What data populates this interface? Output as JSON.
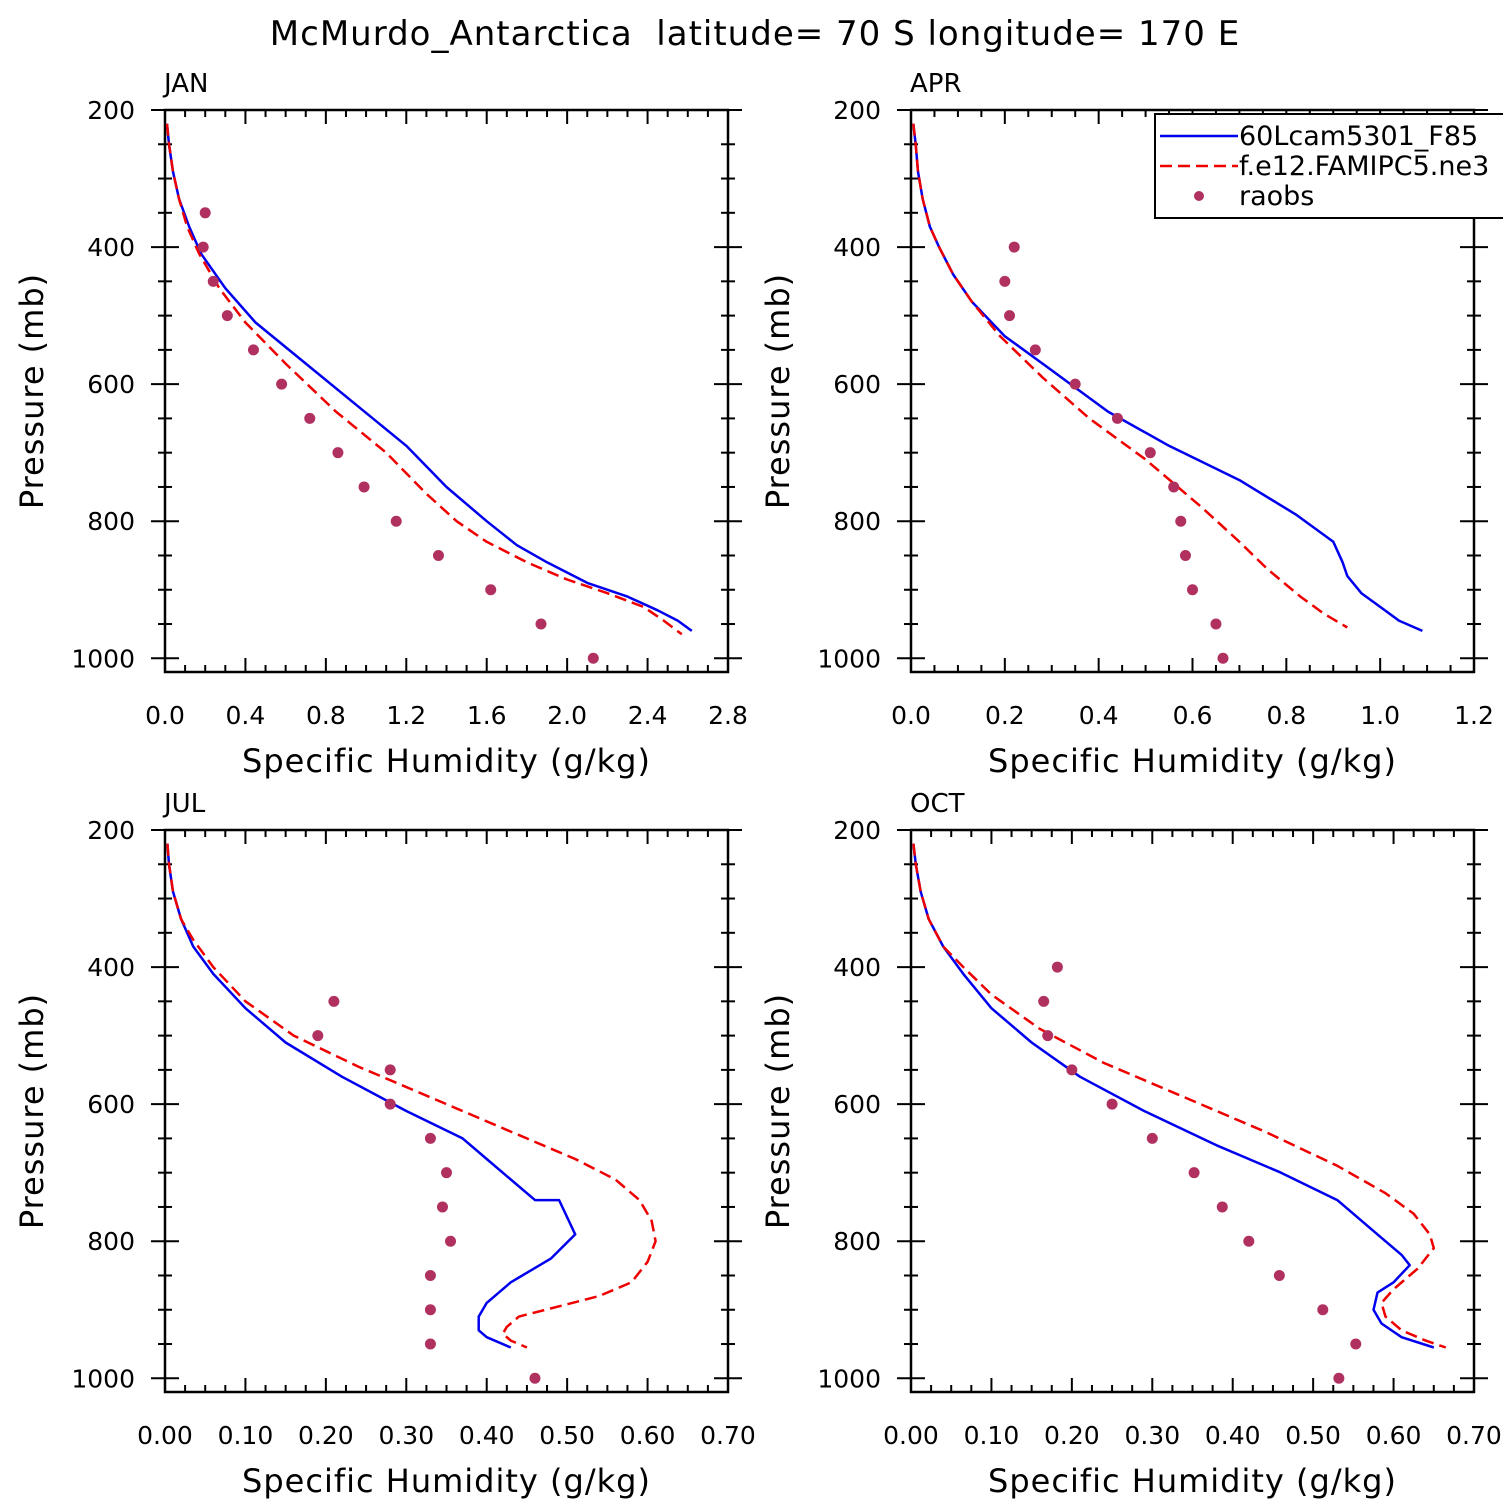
{
  "title": "McMurdo_Antarctica  latitude= 70 S longitude= 170 E",
  "legend": {
    "entries": [
      {
        "label": "60Lcam5301_F85",
        "color": "#0000ee",
        "style": "solid"
      },
      {
        "label": "f.e12.FAMIPC5.ne3",
        "color": "#ee0000",
        "style": "dashed"
      },
      {
        "label": "raobs",
        "color": "#b03060",
        "style": "dot"
      }
    ]
  },
  "chart_data": [
    {
      "type": "line",
      "panel": "JAN",
      "xlabel": "Specific Humidity (g/kg)",
      "ylabel": "Pressure (mb)",
      "xlim": [
        0,
        2.8
      ],
      "ylim": [
        1020,
        200
      ],
      "xticks": [
        "0.0",
        "0.4",
        "0.8",
        "1.2",
        "1.6",
        "2.0",
        "2.4",
        "2.8"
      ],
      "yticks": [
        "200",
        "400",
        "600",
        "800",
        "1000"
      ],
      "series": [
        {
          "name": "60Lcam5301_F85",
          "x": [
            0.01,
            0.02,
            0.04,
            0.07,
            0.12,
            0.18,
            0.3,
            0.45,
            0.7,
            0.95,
            1.2,
            1.4,
            1.6,
            1.75,
            1.9,
            2.1,
            2.3,
            2.45,
            2.55,
            2.62
          ],
          "y": [
            220,
            250,
            290,
            330,
            370,
            410,
            460,
            510,
            570,
            630,
            690,
            750,
            800,
            835,
            860,
            890,
            910,
            930,
            945,
            960
          ]
        },
        {
          "name": "f.e12.FAMIPC5.ne3",
          "x": [
            0.01,
            0.02,
            0.04,
            0.07,
            0.11,
            0.17,
            0.27,
            0.4,
            0.6,
            0.85,
            1.1,
            1.3,
            1.45,
            1.6,
            1.8,
            2.0,
            2.2,
            2.38,
            2.48,
            2.57
          ],
          "y": [
            220,
            250,
            290,
            330,
            370,
            410,
            460,
            510,
            570,
            640,
            700,
            760,
            800,
            830,
            860,
            885,
            905,
            925,
            945,
            965
          ]
        },
        {
          "name": "raobs",
          "x": [
            0.2,
            0.19,
            0.24,
            0.31,
            0.44,
            0.58,
            0.72,
            0.86,
            0.99,
            1.15,
            1.36,
            1.62,
            1.87,
            2.13
          ],
          "y": [
            350,
            400,
            450,
            500,
            550,
            600,
            650,
            700,
            750,
            800,
            850,
            900,
            950,
            1000
          ]
        }
      ]
    },
    {
      "type": "line",
      "panel": "APR",
      "xlabel": "Specific Humidity (g/kg)",
      "ylabel": "Pressure (mb)",
      "xlim": [
        0,
        1.2
      ],
      "ylim": [
        1020,
        200
      ],
      "xticks": [
        "0.0",
        "0.2",
        "0.4",
        "0.6",
        "0.8",
        "1.0",
        "1.2"
      ],
      "yticks": [
        "200",
        "400",
        "600",
        "800",
        "1000"
      ],
      "series": [
        {
          "name": "60Lcam5301_F85",
          "x": [
            0.005,
            0.01,
            0.015,
            0.025,
            0.04,
            0.06,
            0.09,
            0.13,
            0.2,
            0.3,
            0.42,
            0.55,
            0.7,
            0.82,
            0.9,
            0.92,
            0.93,
            0.96,
            1.0,
            1.04,
            1.09
          ],
          "y": [
            220,
            250,
            290,
            330,
            370,
            400,
            440,
            480,
            530,
            580,
            640,
            690,
            740,
            790,
            830,
            860,
            880,
            905,
            925,
            945,
            960
          ]
        },
        {
          "name": "f.e12.FAMIPC5.ne3",
          "x": [
            0.005,
            0.01,
            0.015,
            0.025,
            0.04,
            0.06,
            0.09,
            0.13,
            0.19,
            0.28,
            0.38,
            0.5,
            0.62,
            0.7,
            0.76,
            0.83,
            0.88,
            0.93
          ],
          "y": [
            220,
            250,
            290,
            330,
            370,
            400,
            440,
            480,
            530,
            590,
            650,
            710,
            780,
            830,
            870,
            910,
            935,
            955
          ]
        },
        {
          "name": "raobs",
          "x": [
            0.22,
            0.2,
            0.21,
            0.265,
            0.35,
            0.44,
            0.51,
            0.56,
            0.575,
            0.585,
            0.6,
            0.65,
            0.665
          ],
          "y": [
            400,
            450,
            500,
            550,
            600,
            650,
            700,
            750,
            800,
            850,
            900,
            950,
            1000
          ]
        }
      ]
    },
    {
      "type": "line",
      "panel": "JUL",
      "xlabel": "Specific Humidity (g/kg)",
      "ylabel": "Pressure (mb)",
      "xlim": [
        0,
        0.7
      ],
      "ylim": [
        1020,
        200
      ],
      "xticks": [
        "0.00",
        "0.10",
        "0.20",
        "0.30",
        "0.40",
        "0.50",
        "0.60",
        "0.70"
      ],
      "yticks": [
        "200",
        "400",
        "600",
        "800",
        "1000"
      ],
      "series": [
        {
          "name": "60Lcam5301_F85",
          "x": [
            0.003,
            0.005,
            0.01,
            0.02,
            0.035,
            0.06,
            0.1,
            0.15,
            0.22,
            0.3,
            0.37,
            0.4,
            0.43,
            0.46,
            0.49,
            0.51,
            0.48,
            0.43,
            0.4,
            0.39,
            0.39,
            0.4,
            0.43
          ],
          "y": [
            220,
            250,
            290,
            330,
            370,
            410,
            460,
            510,
            560,
            610,
            650,
            680,
            710,
            740,
            740,
            790,
            825,
            860,
            890,
            910,
            930,
            940,
            955
          ]
        },
        {
          "name": "f.e12.FAMIPC5.ne3",
          "x": [
            0.003,
            0.005,
            0.01,
            0.02,
            0.035,
            0.06,
            0.1,
            0.16,
            0.24,
            0.33,
            0.43,
            0.51,
            0.56,
            0.59,
            0.605,
            0.61,
            0.6,
            0.58,
            0.54,
            0.49,
            0.44,
            0.425,
            0.42,
            0.43,
            0.45
          ],
          "y": [
            220,
            250,
            290,
            330,
            360,
            400,
            450,
            500,
            545,
            590,
            640,
            680,
            710,
            740,
            770,
            800,
            830,
            860,
            880,
            895,
            910,
            925,
            935,
            945,
            955
          ]
        },
        {
          "name": "raobs",
          "x": [
            0.21,
            0.19,
            0.28,
            0.28,
            0.33,
            0.35,
            0.345,
            0.355,
            0.33,
            0.33,
            0.33,
            0.46
          ],
          "y": [
            450,
            500,
            550,
            600,
            650,
            700,
            750,
            800,
            850,
            900,
            950,
            1000
          ]
        }
      ]
    },
    {
      "type": "line",
      "panel": "OCT",
      "xlabel": "Specific Humidity (g/kg)",
      "ylabel": "Pressure (mb)",
      "xlim": [
        0,
        0.7
      ],
      "ylim": [
        1020,
        200
      ],
      "xticks": [
        "0.00",
        "0.10",
        "0.20",
        "0.30",
        "0.40",
        "0.50",
        "0.60",
        "0.70"
      ],
      "yticks": [
        "200",
        "400",
        "600",
        "800",
        "1000"
      ],
      "series": [
        {
          "name": "60Lcam5301_F85",
          "x": [
            0.003,
            0.006,
            0.012,
            0.022,
            0.04,
            0.065,
            0.1,
            0.15,
            0.21,
            0.29,
            0.38,
            0.46,
            0.53,
            0.58,
            0.61,
            0.62,
            0.6,
            0.58,
            0.575,
            0.585,
            0.61,
            0.65
          ],
          "y": [
            220,
            250,
            290,
            330,
            370,
            410,
            460,
            510,
            560,
            610,
            660,
            700,
            740,
            790,
            820,
            835,
            860,
            875,
            900,
            920,
            940,
            955
          ]
        },
        {
          "name": "f.e12.FAMIPC5.ne3",
          "x": [
            0.003,
            0.006,
            0.012,
            0.022,
            0.04,
            0.065,
            0.1,
            0.16,
            0.24,
            0.34,
            0.44,
            0.53,
            0.59,
            0.625,
            0.645,
            0.65,
            0.63,
            0.6,
            0.585,
            0.59,
            0.61,
            0.64,
            0.665
          ],
          "y": [
            220,
            250,
            290,
            330,
            370,
            400,
            440,
            490,
            540,
            590,
            640,
            690,
            730,
            760,
            790,
            810,
            840,
            870,
            890,
            910,
            930,
            945,
            955
          ]
        },
        {
          "name": "raobs",
          "x": [
            0.182,
            0.165,
            0.17,
            0.2,
            0.25,
            0.3,
            0.352,
            0.387,
            0.42,
            0.458,
            0.512,
            0.553,
            0.532
          ],
          "y": [
            400,
            450,
            500,
            550,
            600,
            650,
            700,
            750,
            800,
            850,
            900,
            950,
            1000
          ]
        }
      ]
    }
  ]
}
